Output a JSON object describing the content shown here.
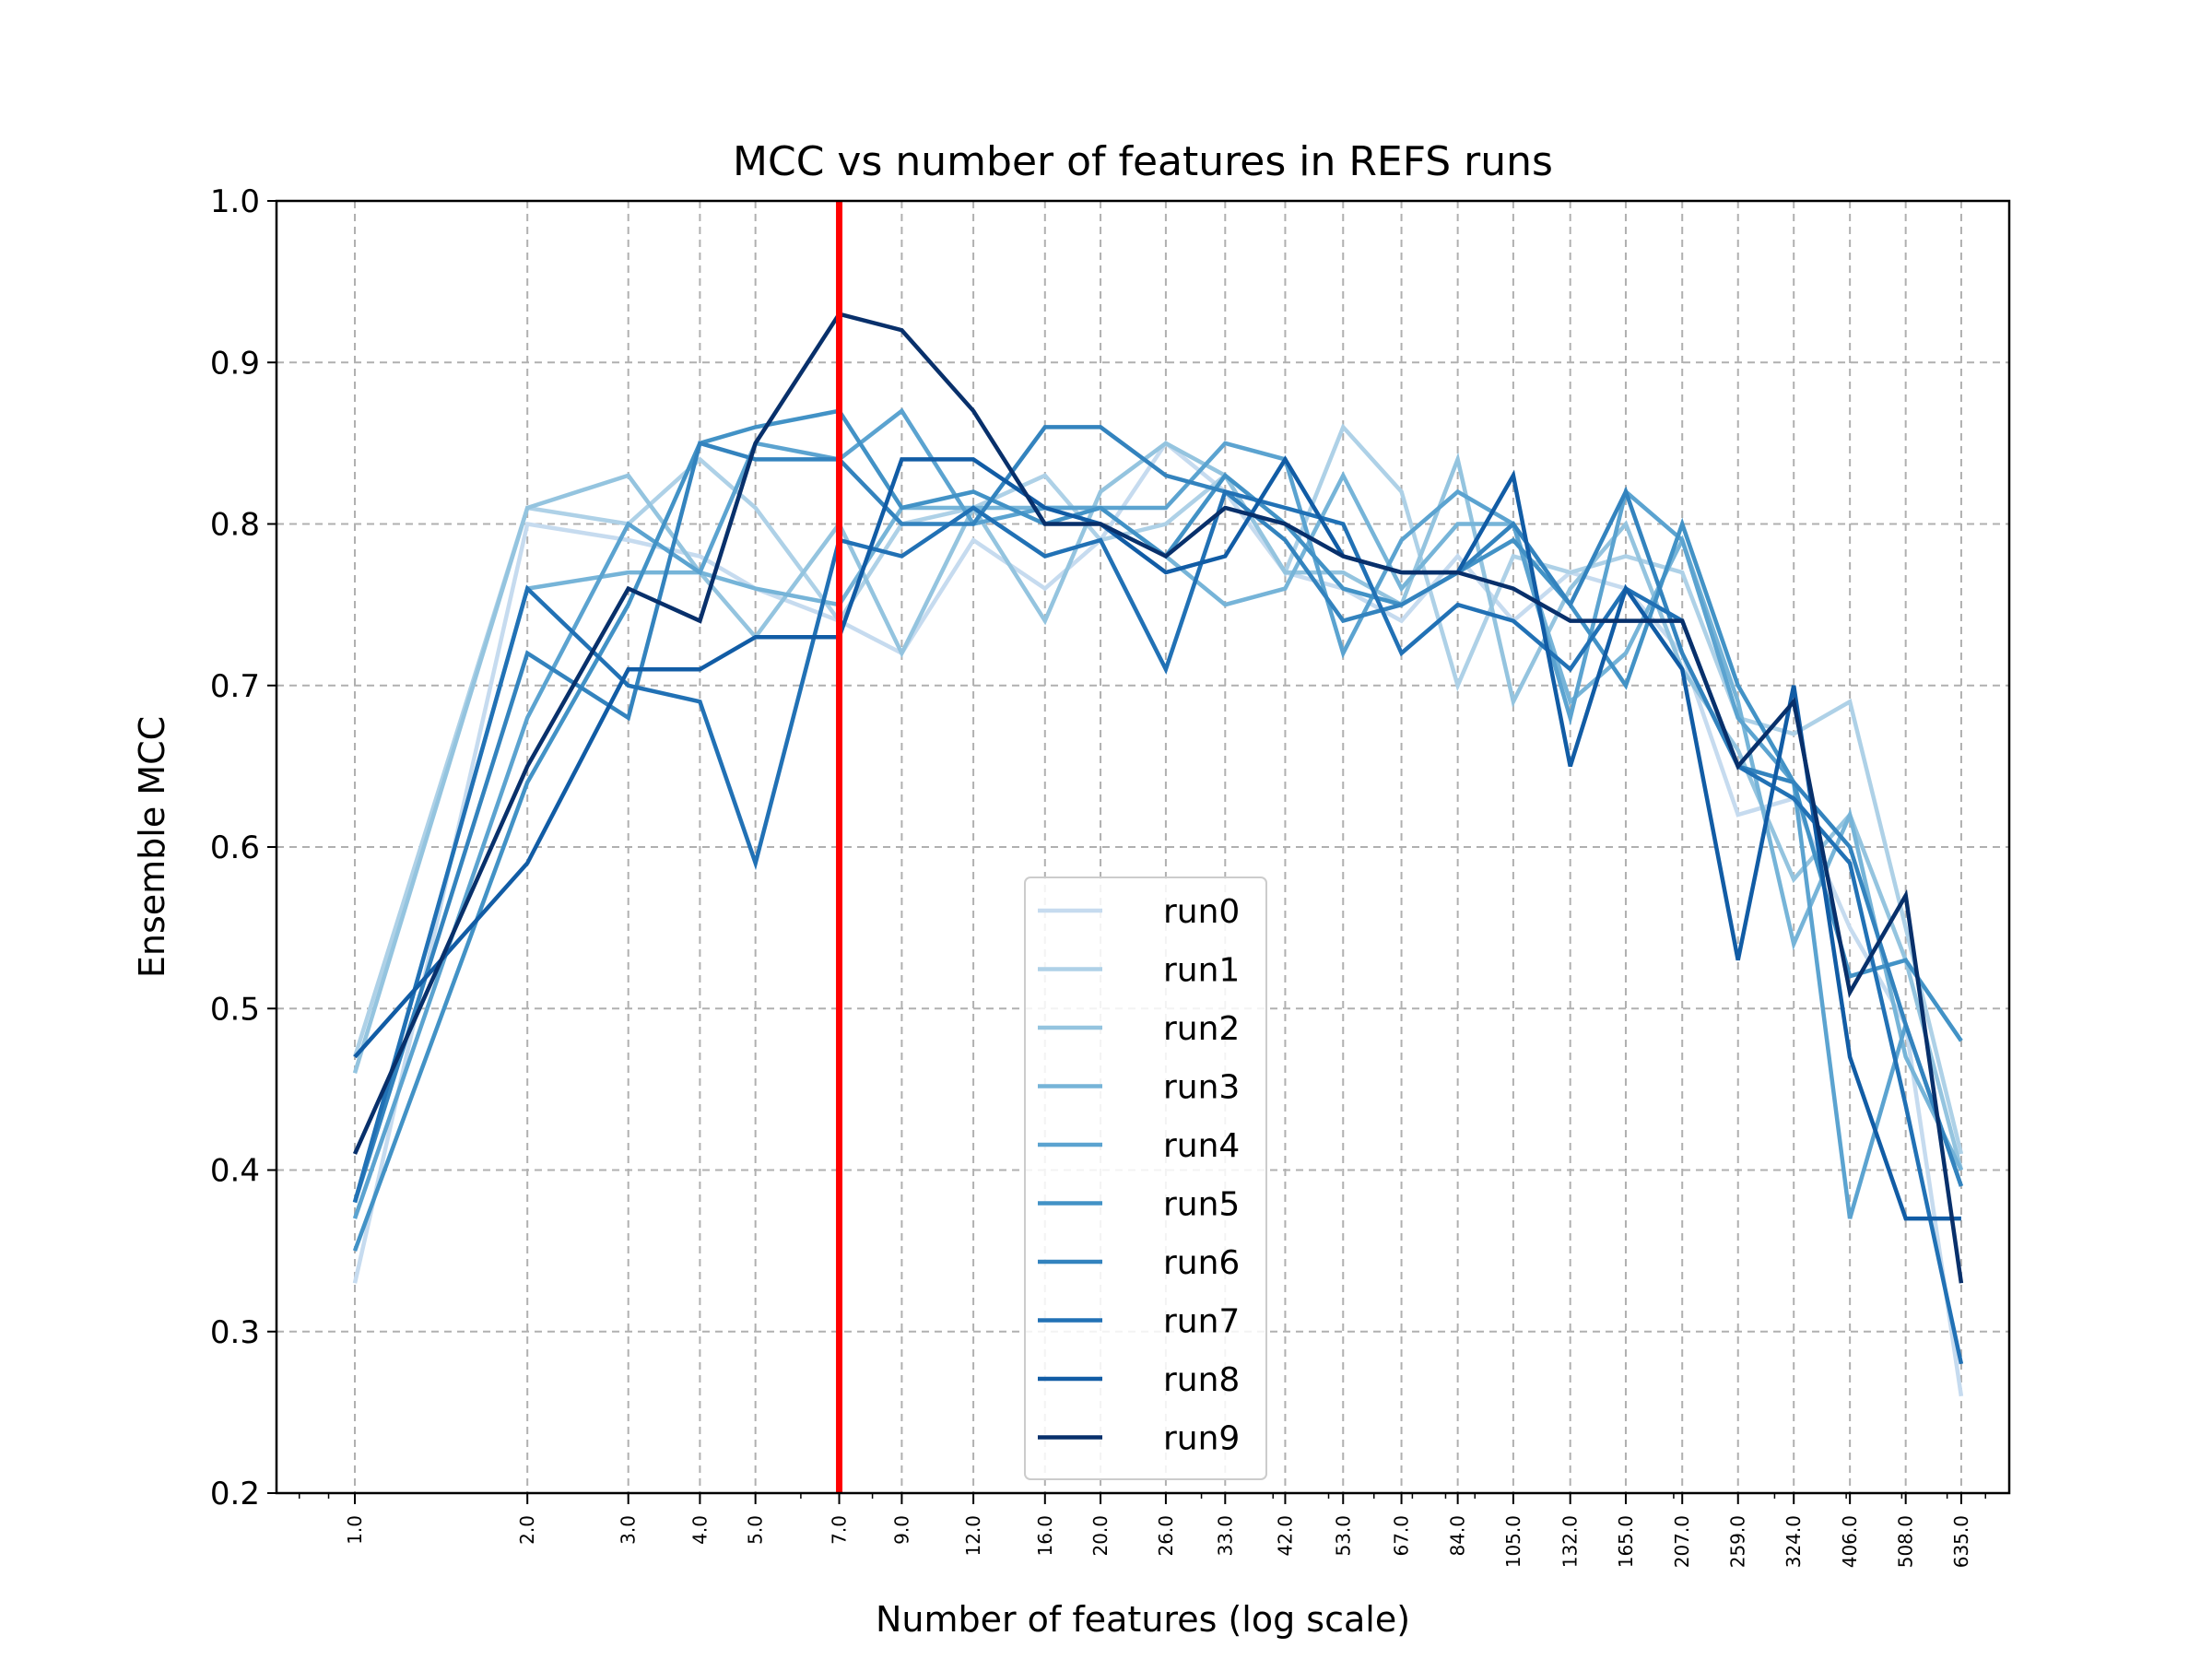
{
  "chart_data": {
    "type": "line",
    "title": "MCC vs number of features in REFS runs",
    "xlabel": "Number of features (log scale)",
    "ylabel": "Ensemble MCC",
    "x_scale": "log",
    "ylim": [
      0.2,
      1.0
    ],
    "yticks": [
      "0.2",
      "0.3",
      "0.4",
      "0.5",
      "0.6",
      "0.7",
      "0.8",
      "0.9",
      "1.0"
    ],
    "x": [
      1,
      2,
      3,
      4,
      5,
      7,
      9,
      12,
      16,
      20,
      26,
      33,
      42,
      53,
      67,
      84,
      105,
      132,
      165,
      207,
      259,
      324,
      406,
      508,
      635
    ],
    "xtick_labels": [
      "1.0",
      "2.0",
      "3.0",
      "4.0",
      "5.0",
      "7.0",
      "9.0",
      "12.0",
      "16.0",
      "20.0",
      "26.0",
      "33.0",
      "42.0",
      "53.0",
      "67.0",
      "84.0",
      "105.0",
      "132.0",
      "165.0",
      "207.0",
      "259.0",
      "324.0",
      "406.0",
      "508.0",
      "635.0"
    ],
    "grid": true,
    "legend_position": "lower-center",
    "vline": {
      "x": 7,
      "color": "#ff0000"
    },
    "series": [
      {
        "name": "run0",
        "color": "#c6dbef",
        "values": [
          0.33,
          0.8,
          0.79,
          0.78,
          0.76,
          0.74,
          0.72,
          0.79,
          0.76,
          0.79,
          0.85,
          0.82,
          0.77,
          0.76,
          0.74,
          0.78,
          0.74,
          0.77,
          0.76,
          0.72,
          0.62,
          0.63,
          0.55,
          0.49,
          0.26
        ]
      },
      {
        "name": "run1",
        "color": "#aed1e7",
        "values": [
          0.47,
          0.81,
          0.8,
          0.84,
          0.81,
          0.74,
          0.8,
          0.81,
          0.83,
          0.79,
          0.8,
          0.83,
          0.77,
          0.86,
          0.82,
          0.7,
          0.78,
          0.77,
          0.78,
          0.77,
          0.68,
          0.67,
          0.69,
          0.55,
          0.41
        ]
      },
      {
        "name": "run2",
        "color": "#94c4df",
        "values": [
          0.46,
          0.81,
          0.83,
          0.77,
          0.73,
          0.8,
          0.72,
          0.81,
          0.74,
          0.82,
          0.85,
          0.83,
          0.77,
          0.77,
          0.75,
          0.84,
          0.69,
          0.76,
          0.8,
          0.71,
          0.66,
          0.58,
          0.62,
          0.53,
          0.4
        ]
      },
      {
        "name": "run3",
        "color": "#76b4d8",
        "values": [
          0.38,
          0.76,
          0.77,
          0.77,
          0.76,
          0.75,
          0.81,
          0.81,
          0.81,
          0.81,
          0.78,
          0.75,
          0.76,
          0.83,
          0.76,
          0.8,
          0.8,
          0.69,
          0.72,
          0.79,
          0.69,
          0.54,
          0.62,
          0.47,
          0.4
        ]
      },
      {
        "name": "run4",
        "color": "#5ba3d0",
        "values": [
          0.37,
          0.68,
          0.8,
          0.77,
          0.85,
          0.84,
          0.87,
          0.8,
          0.81,
          0.81,
          0.81,
          0.85,
          0.84,
          0.72,
          0.79,
          0.82,
          0.8,
          0.68,
          0.82,
          0.79,
          0.68,
          0.64,
          0.37,
          0.49,
          0.39
        ]
      },
      {
        "name": "run5",
        "color": "#4292c6",
        "values": [
          0.35,
          0.64,
          0.75,
          0.85,
          0.86,
          0.87,
          0.81,
          0.82,
          0.8,
          0.81,
          0.78,
          0.83,
          0.8,
          0.76,
          0.75,
          0.77,
          0.79,
          0.75,
          0.7,
          0.8,
          0.7,
          0.64,
          0.52,
          0.53,
          0.48
        ]
      },
      {
        "name": "run6",
        "color": "#3383be",
        "values": [
          0.38,
          0.72,
          0.68,
          0.85,
          0.84,
          0.84,
          0.8,
          0.8,
          0.86,
          0.86,
          0.83,
          0.82,
          0.79,
          0.74,
          0.75,
          0.77,
          0.8,
          0.75,
          0.82,
          0.72,
          0.65,
          0.64,
          0.6,
          0.49,
          0.39
        ]
      },
      {
        "name": "run7",
        "color": "#2171b5",
        "values": [
          0.38,
          0.76,
          0.7,
          0.69,
          0.59,
          0.79,
          0.78,
          0.81,
          0.78,
          0.79,
          0.71,
          0.82,
          0.81,
          0.8,
          0.72,
          0.75,
          0.74,
          0.71,
          0.76,
          0.74,
          0.65,
          0.63,
          0.59,
          0.44,
          0.28
        ]
      },
      {
        "name": "run8",
        "color": "#115ca5",
        "values": [
          0.47,
          0.59,
          0.71,
          0.71,
          0.73,
          0.73,
          0.84,
          0.84,
          0.81,
          0.8,
          0.77,
          0.78,
          0.84,
          0.78,
          0.77,
          0.77,
          0.83,
          0.65,
          0.76,
          0.71,
          0.53,
          0.7,
          0.47,
          0.37,
          0.37
        ]
      },
      {
        "name": "run9",
        "color": "#08306b",
        "values": [
          0.41,
          0.65,
          0.76,
          0.74,
          0.85,
          0.93,
          0.92,
          0.87,
          0.8,
          0.8,
          0.78,
          0.81,
          0.8,
          0.78,
          0.77,
          0.77,
          0.76,
          0.74,
          0.74,
          0.74,
          0.65,
          0.69,
          0.51,
          0.57,
          0.33
        ]
      }
    ]
  }
}
